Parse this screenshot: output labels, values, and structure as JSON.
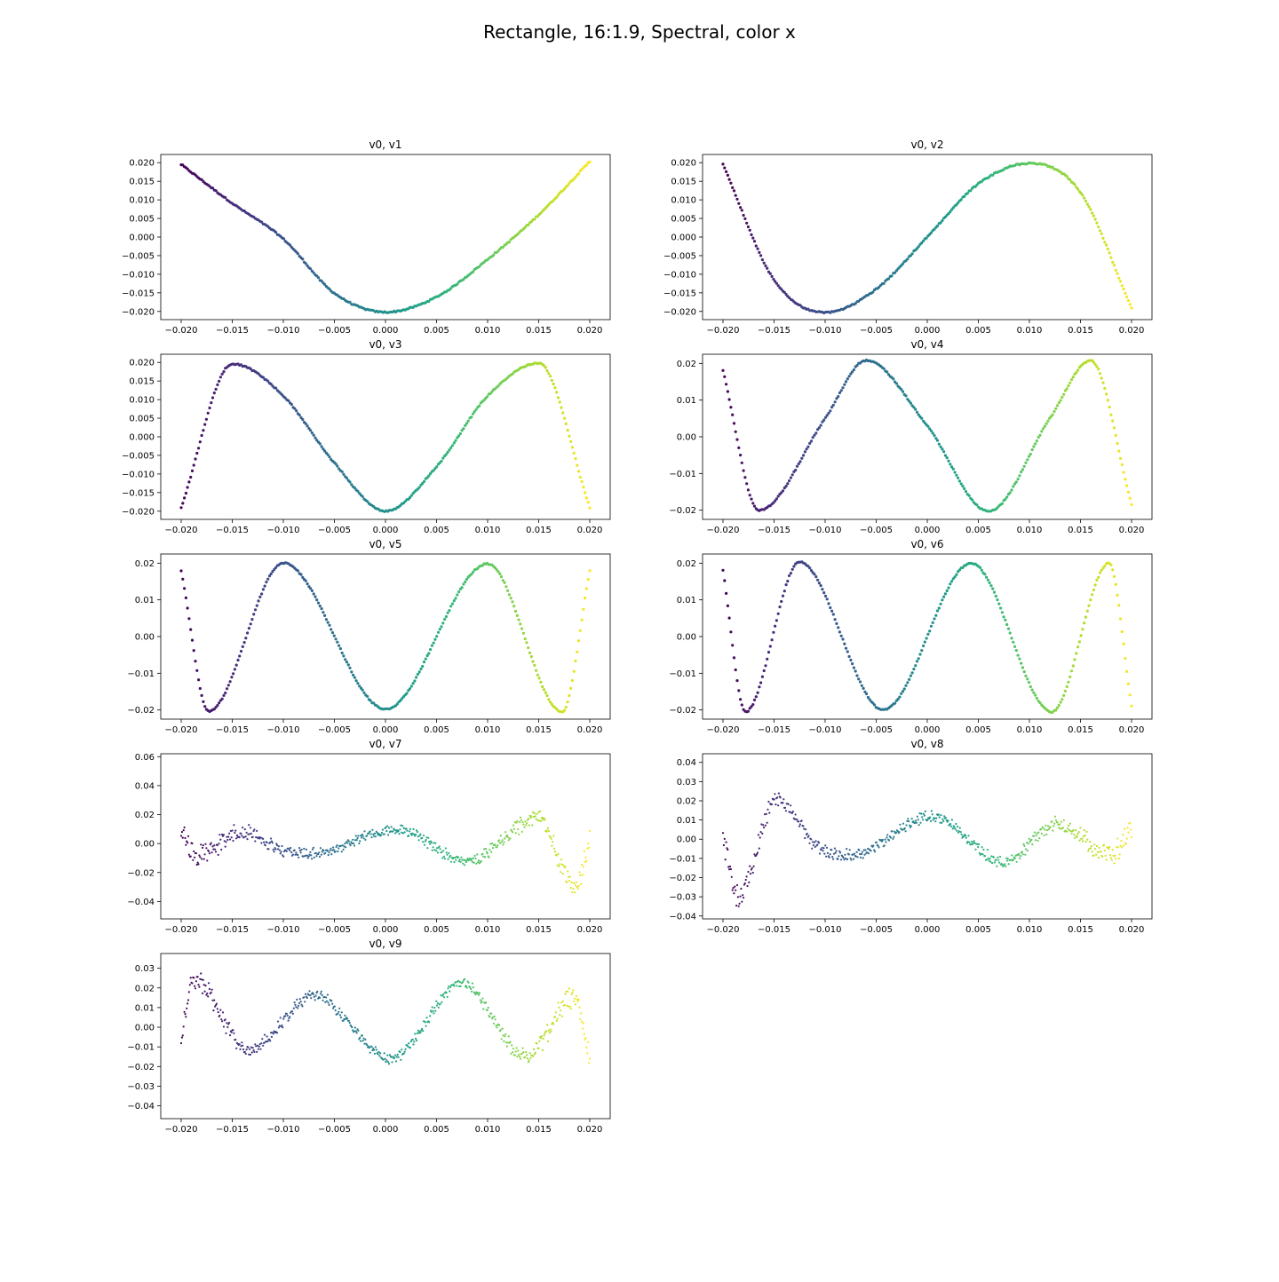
{
  "figure": {
    "title": "Rectangle, 16:1.9, Spectral, color x"
  },
  "chart_data": [
    {
      "type": "scatter",
      "title": "v0, v1",
      "xlabel": "",
      "ylabel": "",
      "xlim": [
        -0.022,
        0.022
      ],
      "ylim": [
        -0.0222,
        0.0222
      ],
      "xticks": [
        -0.02,
        -0.015,
        -0.01,
        -0.005,
        0.0,
        0.005,
        0.01,
        0.015,
        0.02
      ],
      "xtick_labels": [
        "−0.020",
        "−0.015",
        "−0.010",
        "−0.005",
        "0.000",
        "0.005",
        "0.010",
        "0.015",
        "0.020"
      ],
      "yticks": [
        0.02,
        0.015,
        0.01,
        0.005,
        0.0,
        -0.005,
        -0.01,
        -0.015,
        -0.02
      ],
      "ytick_labels": [
        "0.020",
        "0.015",
        "0.010",
        "0.005",
        "0.000",
        "−0.005",
        "−0.010",
        "−0.015",
        "−0.020"
      ],
      "grid": false,
      "colormap": "viridis",
      "color_by": "x",
      "points": [
        [
          -0.02,
          0.0195
        ],
        [
          -0.015,
          0.0091
        ],
        [
          -0.01,
          -0.0005
        ],
        [
          -0.005,
          -0.0151
        ],
        [
          0.0,
          -0.0202
        ],
        [
          0.005,
          -0.0161
        ],
        [
          0.01,
          -0.006
        ],
        [
          0.015,
          0.006
        ],
        [
          0.02,
          0.0203
        ]
      ]
    },
    {
      "type": "scatter",
      "title": "v0, v2",
      "xlabel": "",
      "ylabel": "",
      "xlim": [
        -0.022,
        0.022
      ],
      "ylim": [
        -0.0222,
        0.0222
      ],
      "xticks": [
        -0.02,
        -0.015,
        -0.01,
        -0.005,
        0.0,
        0.005,
        0.01,
        0.015,
        0.02
      ],
      "xtick_labels": [
        "−0.020",
        "−0.015",
        "−0.010",
        "−0.005",
        "0.000",
        "0.005",
        "0.010",
        "0.015",
        "0.020"
      ],
      "yticks": [
        0.02,
        0.015,
        0.01,
        0.005,
        0.0,
        -0.005,
        -0.01,
        -0.015,
        -0.02
      ],
      "ytick_labels": [
        "0.020",
        "0.015",
        "0.010",
        "0.005",
        "0.000",
        "−0.005",
        "−0.010",
        "−0.015",
        "−0.020"
      ],
      "grid": false,
      "colormap": "viridis",
      "color_by": "x",
      "points": [
        [
          -0.02,
          0.0195
        ],
        [
          -0.015,
          -0.0115
        ],
        [
          -0.01,
          -0.0203
        ],
        [
          -0.005,
          -0.014
        ],
        [
          0.0,
          0.0
        ],
        [
          0.005,
          0.0143
        ],
        [
          0.01,
          0.0198
        ],
        [
          0.015,
          0.012
        ],
        [
          0.02,
          -0.0192
        ]
      ]
    },
    {
      "type": "scatter",
      "title": "v0, v3",
      "xlabel": "",
      "ylabel": "",
      "xlim": [
        -0.022,
        0.022
      ],
      "ylim": [
        -0.0222,
        0.0222
      ],
      "xticks": [
        -0.02,
        -0.015,
        -0.01,
        -0.005,
        0.0,
        0.005,
        0.01,
        0.015,
        0.02
      ],
      "xtick_labels": [
        "−0.020",
        "−0.015",
        "−0.010",
        "−0.005",
        "0.000",
        "0.005",
        "0.010",
        "0.015",
        "0.020"
      ],
      "yticks": [
        0.02,
        0.015,
        0.01,
        0.005,
        0.0,
        -0.005,
        -0.01,
        -0.015,
        -0.02
      ],
      "ytick_labels": [
        "0.020",
        "0.015",
        "0.010",
        "0.005",
        "0.000",
        "−0.005",
        "−0.010",
        "−0.015",
        "−0.020"
      ],
      "grid": false,
      "colormap": "viridis",
      "color_by": "x",
      "points": [
        [
          -0.02,
          -0.019
        ],
        [
          -0.015,
          0.0196
        ],
        [
          -0.01,
          0.011
        ],
        [
          -0.005,
          -0.007
        ],
        [
          0.0,
          -0.02
        ],
        [
          0.005,
          -0.008
        ],
        [
          0.01,
          0.011
        ],
        [
          0.015,
          0.0198
        ],
        [
          0.02,
          -0.019
        ]
      ]
    },
    {
      "type": "scatter",
      "title": "v0, v4",
      "xlabel": "",
      "ylabel": "",
      "xlim": [
        -0.022,
        0.022
      ],
      "ylim": [
        -0.0225,
        0.0225
      ],
      "xticks": [
        -0.02,
        -0.015,
        -0.01,
        -0.005,
        0.0,
        0.005,
        0.01,
        0.015,
        0.02
      ],
      "xtick_labels": [
        "−0.020",
        "−0.015",
        "−0.010",
        "−0.005",
        "0.000",
        "0.005",
        "0.010",
        "0.015",
        "0.020"
      ],
      "yticks": [
        0.02,
        0.01,
        0.0,
        -0.01,
        -0.02
      ],
      "ytick_labels": [
        "0.02",
        "0.01",
        "0.00",
        "−0.01",
        "−0.02"
      ],
      "grid": false,
      "colormap": "viridis",
      "color_by": "x",
      "points": [
        [
          -0.02,
          0.018
        ],
        [
          -0.0165,
          -0.02
        ],
        [
          -0.01,
          0.005
        ],
        [
          -0.006,
          0.0208
        ],
        [
          0.0,
          0.003
        ],
        [
          0.006,
          -0.0203
        ],
        [
          0.012,
          0.005
        ],
        [
          0.016,
          0.0208
        ],
        [
          0.02,
          -0.0185
        ]
      ]
    },
    {
      "type": "scatter",
      "title": "v0, v5",
      "xlabel": "",
      "ylabel": "",
      "xlim": [
        -0.022,
        0.022
      ],
      "ylim": [
        -0.0225,
        0.0225
      ],
      "xticks": [
        -0.02,
        -0.015,
        -0.01,
        -0.005,
        0.0,
        0.005,
        0.01,
        0.015,
        0.02
      ],
      "xtick_labels": [
        "−0.020",
        "−0.015",
        "−0.010",
        "−0.005",
        "0.000",
        "0.005",
        "0.010",
        "0.015",
        "0.020"
      ],
      "yticks": [
        0.02,
        0.01,
        0.0,
        -0.01,
        -0.02
      ],
      "ytick_labels": [
        "0.02",
        "0.01",
        "0.00",
        "−0.01",
        "−0.02"
      ],
      "grid": false,
      "colormap": "viridis",
      "color_by": "x",
      "points": [
        [
          -0.02,
          0.018
        ],
        [
          -0.0173,
          -0.0203
        ],
        [
          -0.01,
          0.02
        ],
        [
          0.0,
          -0.0198
        ],
        [
          0.01,
          0.0198
        ],
        [
          0.0173,
          -0.0205
        ],
        [
          0.02,
          0.018
        ]
      ]
    },
    {
      "type": "scatter",
      "title": "v0, v6",
      "xlabel": "",
      "ylabel": "",
      "xlim": [
        -0.022,
        0.022
      ],
      "ylim": [
        -0.0225,
        0.0225
      ],
      "xticks": [
        -0.02,
        -0.015,
        -0.01,
        -0.005,
        0.0,
        0.005,
        0.01,
        0.015,
        0.02
      ],
      "xtick_labels": [
        "−0.020",
        "−0.015",
        "−0.010",
        "−0.005",
        "0.000",
        "0.005",
        "0.010",
        "0.015",
        "0.020"
      ],
      "yticks": [
        0.02,
        0.01,
        0.0,
        -0.01,
        -0.02
      ],
      "ytick_labels": [
        "0.02",
        "0.01",
        "0.00",
        "−0.01",
        "−0.02"
      ],
      "grid": false,
      "colormap": "viridis",
      "color_by": "x",
      "points": [
        [
          -0.02,
          0.018
        ],
        [
          -0.0178,
          -0.0205
        ],
        [
          -0.0125,
          0.0203
        ],
        [
          -0.0043,
          -0.02
        ],
        [
          0.0043,
          0.02
        ],
        [
          0.0122,
          -0.0205
        ],
        [
          0.0178,
          0.02
        ],
        [
          0.02,
          -0.019
        ]
      ]
    },
    {
      "type": "scatter",
      "title": "v0, v7",
      "xlabel": "",
      "ylabel": "",
      "xlim": [
        -0.022,
        0.022
      ],
      "ylim": [
        -0.052,
        0.062
      ],
      "xticks": [
        -0.02,
        -0.015,
        -0.01,
        -0.005,
        0.0,
        0.005,
        0.01,
        0.015,
        0.02
      ],
      "xtick_labels": [
        "−0.020",
        "−0.015",
        "−0.010",
        "−0.005",
        "0.000",
        "0.005",
        "0.010",
        "0.015",
        "0.020"
      ],
      "yticks": [
        0.06,
        0.04,
        0.02,
        0.0,
        -0.02,
        -0.04
      ],
      "ytick_labels": [
        "0.06",
        "0.04",
        "0.02",
        "0.00",
        "−0.02",
        "−0.04"
      ],
      "grid": false,
      "colormap": "viridis",
      "color_by": "x",
      "points": [
        [
          -0.02,
          0.008
        ],
        [
          -0.0185,
          -0.009
        ],
        [
          -0.014,
          0.008
        ],
        [
          -0.0095,
          -0.006
        ],
        [
          -0.007,
          -0.007
        ],
        [
          0.001,
          0.01
        ],
        [
          0.008,
          -0.012
        ],
        [
          0.015,
          0.017
        ],
        [
          0.0185,
          -0.03
        ],
        [
          0.02,
          0.005
        ]
      ]
    },
    {
      "type": "scatter",
      "title": "v0, v8",
      "xlabel": "",
      "ylabel": "",
      "xlim": [
        -0.022,
        0.022
      ],
      "ylim": [
        -0.0415,
        0.0445
      ],
      "xticks": [
        -0.02,
        -0.015,
        -0.01,
        -0.005,
        0.0,
        0.005,
        0.01,
        0.015,
        0.02
      ],
      "xtick_labels": [
        "−0.020",
        "−0.015",
        "−0.010",
        "−0.005",
        "0.000",
        "0.005",
        "0.010",
        "0.015",
        "0.020"
      ],
      "yticks": [
        0.04,
        0.03,
        0.02,
        0.01,
        0.0,
        -0.01,
        -0.02,
        -0.03,
        -0.04
      ],
      "ytick_labels": [
        "0.04",
        "0.03",
        "0.02",
        "0.01",
        "0.00",
        "−0.01",
        "−0.02",
        "−0.03",
        "−0.04"
      ],
      "grid": false,
      "colormap": "viridis",
      "color_by": "x",
      "points": [
        [
          -0.02,
          0.0
        ],
        [
          -0.0185,
          -0.03
        ],
        [
          -0.0148,
          0.02
        ],
        [
          -0.0105,
          -0.005
        ],
        [
          -0.0075,
          -0.008
        ],
        [
          0.0005,
          0.012
        ],
        [
          0.0075,
          -0.012
        ],
        [
          0.0128,
          0.008
        ],
        [
          0.018,
          -0.008
        ],
        [
          0.02,
          0.006
        ]
      ]
    },
    {
      "type": "scatter",
      "title": "v0, v9",
      "xlabel": "",
      "ylabel": "",
      "xlim": [
        -0.022,
        0.022
      ],
      "ylim": [
        -0.0465,
        0.0375
      ],
      "xticks": [
        -0.02,
        -0.015,
        -0.01,
        -0.005,
        0.0,
        0.005,
        0.01,
        0.015,
        0.02
      ],
      "xtick_labels": [
        "−0.020",
        "−0.015",
        "−0.010",
        "−0.005",
        "0.000",
        "0.005",
        "0.010",
        "0.015",
        "0.020"
      ],
      "yticks": [
        0.03,
        0.02,
        0.01,
        0.0,
        -0.01,
        -0.02,
        -0.03,
        -0.04
      ],
      "ytick_labels": [
        "0.03",
        "0.02",
        "0.01",
        "0.00",
        "−0.01",
        "−0.02",
        "−0.03",
        "−0.04"
      ],
      "grid": false,
      "colormap": "viridis",
      "color_by": "x",
      "points": [
        [
          -0.02,
          -0.005
        ],
        [
          -0.0188,
          0.025
        ],
        [
          -0.0135,
          -0.012
        ],
        [
          -0.007,
          0.016
        ],
        [
          0.0005,
          -0.016
        ],
        [
          0.0075,
          0.022
        ],
        [
          0.0138,
          -0.015
        ],
        [
          0.0185,
          0.015
        ],
        [
          0.02,
          -0.015
        ]
      ]
    }
  ]
}
